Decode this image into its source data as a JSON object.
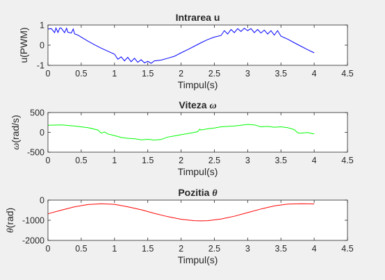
{
  "chart_data": [
    {
      "type": "line",
      "title": "Intrarea u",
      "xlabel": "Timpul(s)",
      "ylabel": "u(PWM)",
      "xlim": [
        0,
        4.5
      ],
      "ylim": [
        -1,
        1
      ],
      "xticks": [
        "0",
        "0.5",
        "1",
        "1.5",
        "2",
        "2.5",
        "3",
        "3.5",
        "4",
        "4.5"
      ],
      "yticks": [
        "-1",
        "0",
        "1"
      ],
      "color": "#0000ff",
      "series": [
        {
          "x": [
            0,
            0.05,
            0.1,
            0.12,
            0.15,
            0.18,
            0.2,
            0.25,
            0.28,
            0.3,
            0.35,
            0.38,
            0.4,
            0.45,
            0.5,
            0.6,
            0.7,
            0.8,
            0.9,
            1.0,
            1.05,
            1.1,
            1.15,
            1.2,
            1.25,
            1.3,
            1.35,
            1.4,
            1.45,
            1.5,
            1.55,
            1.6,
            1.7,
            1.8,
            1.9,
            2.0,
            2.1,
            2.2,
            2.3,
            2.4,
            2.5,
            2.6,
            2.65,
            2.7,
            2.75,
            2.8,
            2.85,
            2.9,
            2.95,
            3.0,
            3.05,
            3.1,
            3.15,
            3.2,
            3.25,
            3.3,
            3.35,
            3.4,
            3.45,
            3.5,
            3.6,
            3.7,
            3.8,
            3.9,
            4.0
          ],
          "y": [
            0.8,
            0.82,
            0.62,
            0.85,
            0.63,
            0.86,
            0.84,
            0.62,
            0.84,
            0.64,
            0.6,
            0.8,
            0.56,
            0.5,
            0.4,
            0.2,
            0.02,
            -0.15,
            -0.3,
            -0.45,
            -0.7,
            -0.58,
            -0.78,
            -0.6,
            -0.82,
            -0.65,
            -0.85,
            -0.72,
            -0.88,
            -0.8,
            -0.9,
            -0.78,
            -0.74,
            -0.65,
            -0.55,
            -0.38,
            -0.22,
            -0.05,
            0.12,
            0.28,
            0.4,
            0.48,
            0.72,
            0.55,
            0.78,
            0.62,
            0.82,
            0.68,
            0.84,
            0.72,
            0.82,
            0.62,
            0.78,
            0.6,
            0.75,
            0.55,
            0.72,
            0.5,
            0.72,
            0.45,
            0.3,
            0.12,
            -0.05,
            -0.22,
            -0.38
          ]
        }
      ]
    },
    {
      "type": "line",
      "title": "Viteza ω",
      "xlabel": "Timpul(s)",
      "ylabel": "ω(rad/s)",
      "xlim": [
        0,
        4.5
      ],
      "ylim": [
        -500,
        500
      ],
      "xticks": [
        "0",
        "0.5",
        "1",
        "1.5",
        "2",
        "2.5",
        "3",
        "3.5",
        "4",
        "4.5"
      ],
      "yticks": [
        "-500",
        "0",
        "500"
      ],
      "color": "#00ff00",
      "series": [
        {
          "x": [
            0,
            0.2,
            0.4,
            0.6,
            0.75,
            0.8,
            0.85,
            0.9,
            1.0,
            1.1,
            1.2,
            1.3,
            1.4,
            1.5,
            1.6,
            1.7,
            1.8,
            1.9,
            2.0,
            2.1,
            2.2,
            2.25,
            2.28,
            2.3,
            2.4,
            2.5,
            2.6,
            2.7,
            2.8,
            2.9,
            3.0,
            3.1,
            3.2,
            3.3,
            3.4,
            3.5,
            3.6,
            3.7,
            3.75,
            3.8,
            3.9,
            4.0
          ],
          "y": [
            180,
            190,
            160,
            120,
            60,
            -20,
            10,
            -40,
            -80,
            -130,
            -150,
            -160,
            -190,
            -175,
            -195,
            -180,
            -120,
            -90,
            -60,
            -30,
            0,
            20,
            80,
            60,
            90,
            110,
            140,
            150,
            160,
            180,
            200,
            190,
            140,
            150,
            130,
            140,
            120,
            70,
            -10,
            -20,
            -5,
            -40
          ]
        }
      ]
    },
    {
      "type": "line",
      "title": "Pozitia θ",
      "xlabel": "Timpul(s)",
      "ylabel": "θ(rad)",
      "xlim": [
        0,
        4.5
      ],
      "ylim": [
        -2000,
        0
      ],
      "xticks": [
        "0",
        "0.5",
        "1",
        "1.5",
        "2",
        "2.5",
        "3",
        "3.5",
        "4",
        "4.5"
      ],
      "yticks": [
        "-2000",
        "-1000",
        "0"
      ],
      "color": "#ff0000",
      "series": [
        {
          "x": [
            0,
            0.2,
            0.4,
            0.6,
            0.8,
            1.0,
            1.2,
            1.4,
            1.6,
            1.8,
            2.0,
            2.2,
            2.3,
            2.4,
            2.6,
            2.8,
            3.0,
            3.2,
            3.4,
            3.6,
            3.8,
            4.0
          ],
          "y": [
            -680,
            -500,
            -330,
            -220,
            -180,
            -210,
            -330,
            -480,
            -660,
            -820,
            -950,
            -1020,
            -1030,
            -1020,
            -940,
            -800,
            -620,
            -440,
            -290,
            -200,
            -180,
            -190
          ]
        }
      ]
    }
  ]
}
